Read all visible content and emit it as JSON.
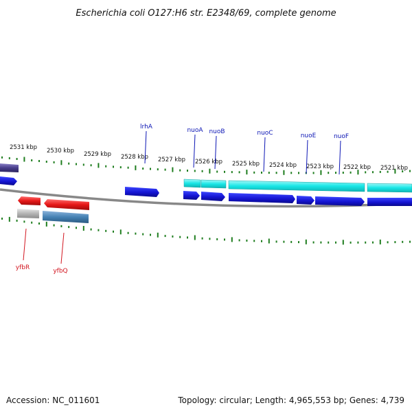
{
  "title": "Escherichia coli O127:H6 str. E2348/69, complete genome",
  "footer": {
    "accession": "Accession: NC_011601",
    "summary": "Topology: circular; Length: 4,965,553 bp; Genes: 4,739"
  },
  "colors": {
    "tick": "#1e7d1e",
    "backbone": "#888888",
    "upper_gene_label": "#0a14b4",
    "lower_gene_label": "#d2141e",
    "gene_blue": "#1414d2",
    "gene_cyan": "#18e6e6",
    "gene_red": "#e61818",
    "gene_steel": "#4682b4",
    "gene_gray": "#b4b4b4",
    "gene_slate": "#483d8b"
  },
  "scale": {
    "unit": "kbp",
    "labels": [
      "2531 kbp",
      "2530 kbp",
      "2529 kbp",
      "2528 kbp",
      "2527 kbp",
      "2526 kbp",
      "2525 kbp",
      "2524 kbp",
      "2523 kbp",
      "2522 kbp",
      "2521 kbp"
    ]
  },
  "genes": {
    "upper_labels": [
      "lrhA",
      "nuoA",
      "nuoB",
      "nuoC",
      "nuoE",
      "nuoF"
    ],
    "lower_labels": [
      "yfbR",
      "yfbQ"
    ]
  }
}
